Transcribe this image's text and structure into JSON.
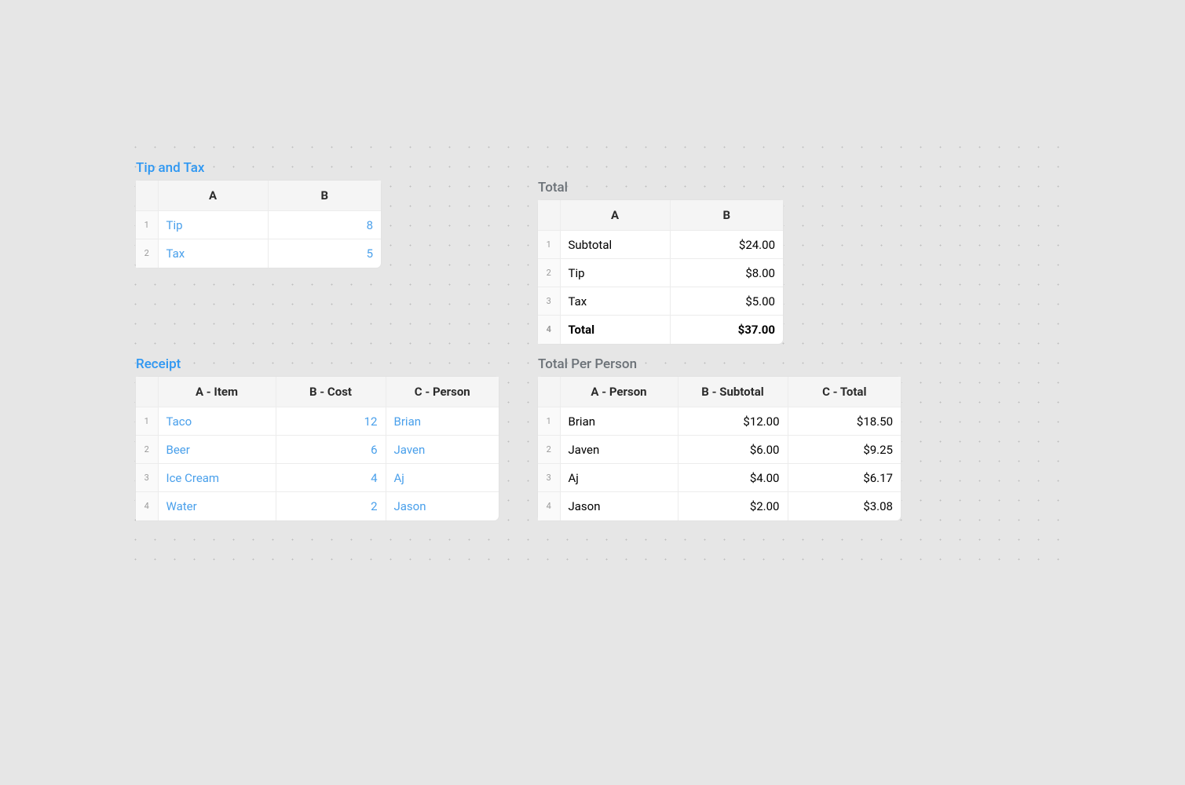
{
  "colors": {
    "page_bg": "#e6e6e6",
    "dot": "#bdbdbd",
    "card_bg": "#ffffff",
    "card_border": "#e2e2e2",
    "header_bg": "#f5f5f5",
    "cell_border": "#ececec",
    "text": "#2b2b2b",
    "rownum": "#9a9a9a",
    "title_blue": "#2e97f2",
    "title_gray": "#6b7177",
    "link": "#4aa0eb"
  },
  "tip_tax": {
    "title": "Tip and Tax",
    "columns": [
      "A",
      "B"
    ],
    "rows": [
      {
        "label": "Tip",
        "value": "8"
      },
      {
        "label": "Tax",
        "value": "5"
      }
    ]
  },
  "total": {
    "title": "Total",
    "columns": [
      "A",
      "B"
    ],
    "rows": [
      {
        "label": "Subtotal",
        "value": "$24.00",
        "bold": false
      },
      {
        "label": "Tip",
        "value": "$8.00",
        "bold": false
      },
      {
        "label": "Tax",
        "value": "$5.00",
        "bold": false
      },
      {
        "label": "Total",
        "value": "$37.00",
        "bold": true
      }
    ]
  },
  "receipt": {
    "title": "Receipt",
    "columns": [
      "A - Item",
      "B - Cost",
      "C - Person"
    ],
    "rows": [
      {
        "item": "Taco",
        "cost": "12",
        "person": "Brian"
      },
      {
        "item": "Beer",
        "cost": "6",
        "person": "Javen"
      },
      {
        "item": "Ice Cream",
        "cost": "4",
        "person": "Aj"
      },
      {
        "item": "Water",
        "cost": "2",
        "person": "Jason"
      }
    ]
  },
  "per_person": {
    "title": "Total Per Person",
    "columns": [
      "A - Person",
      "B - Subtotal",
      "C - Total"
    ],
    "rows": [
      {
        "person": "Brian",
        "subtotal": "$12.00",
        "total": "$18.50"
      },
      {
        "person": "Javen",
        "subtotal": "$6.00",
        "total": "$9.25"
      },
      {
        "person": "Aj",
        "subtotal": "$4.00",
        "total": "$6.17"
      },
      {
        "person": "Jason",
        "subtotal": "$2.00",
        "total": "$3.08"
      }
    ]
  }
}
